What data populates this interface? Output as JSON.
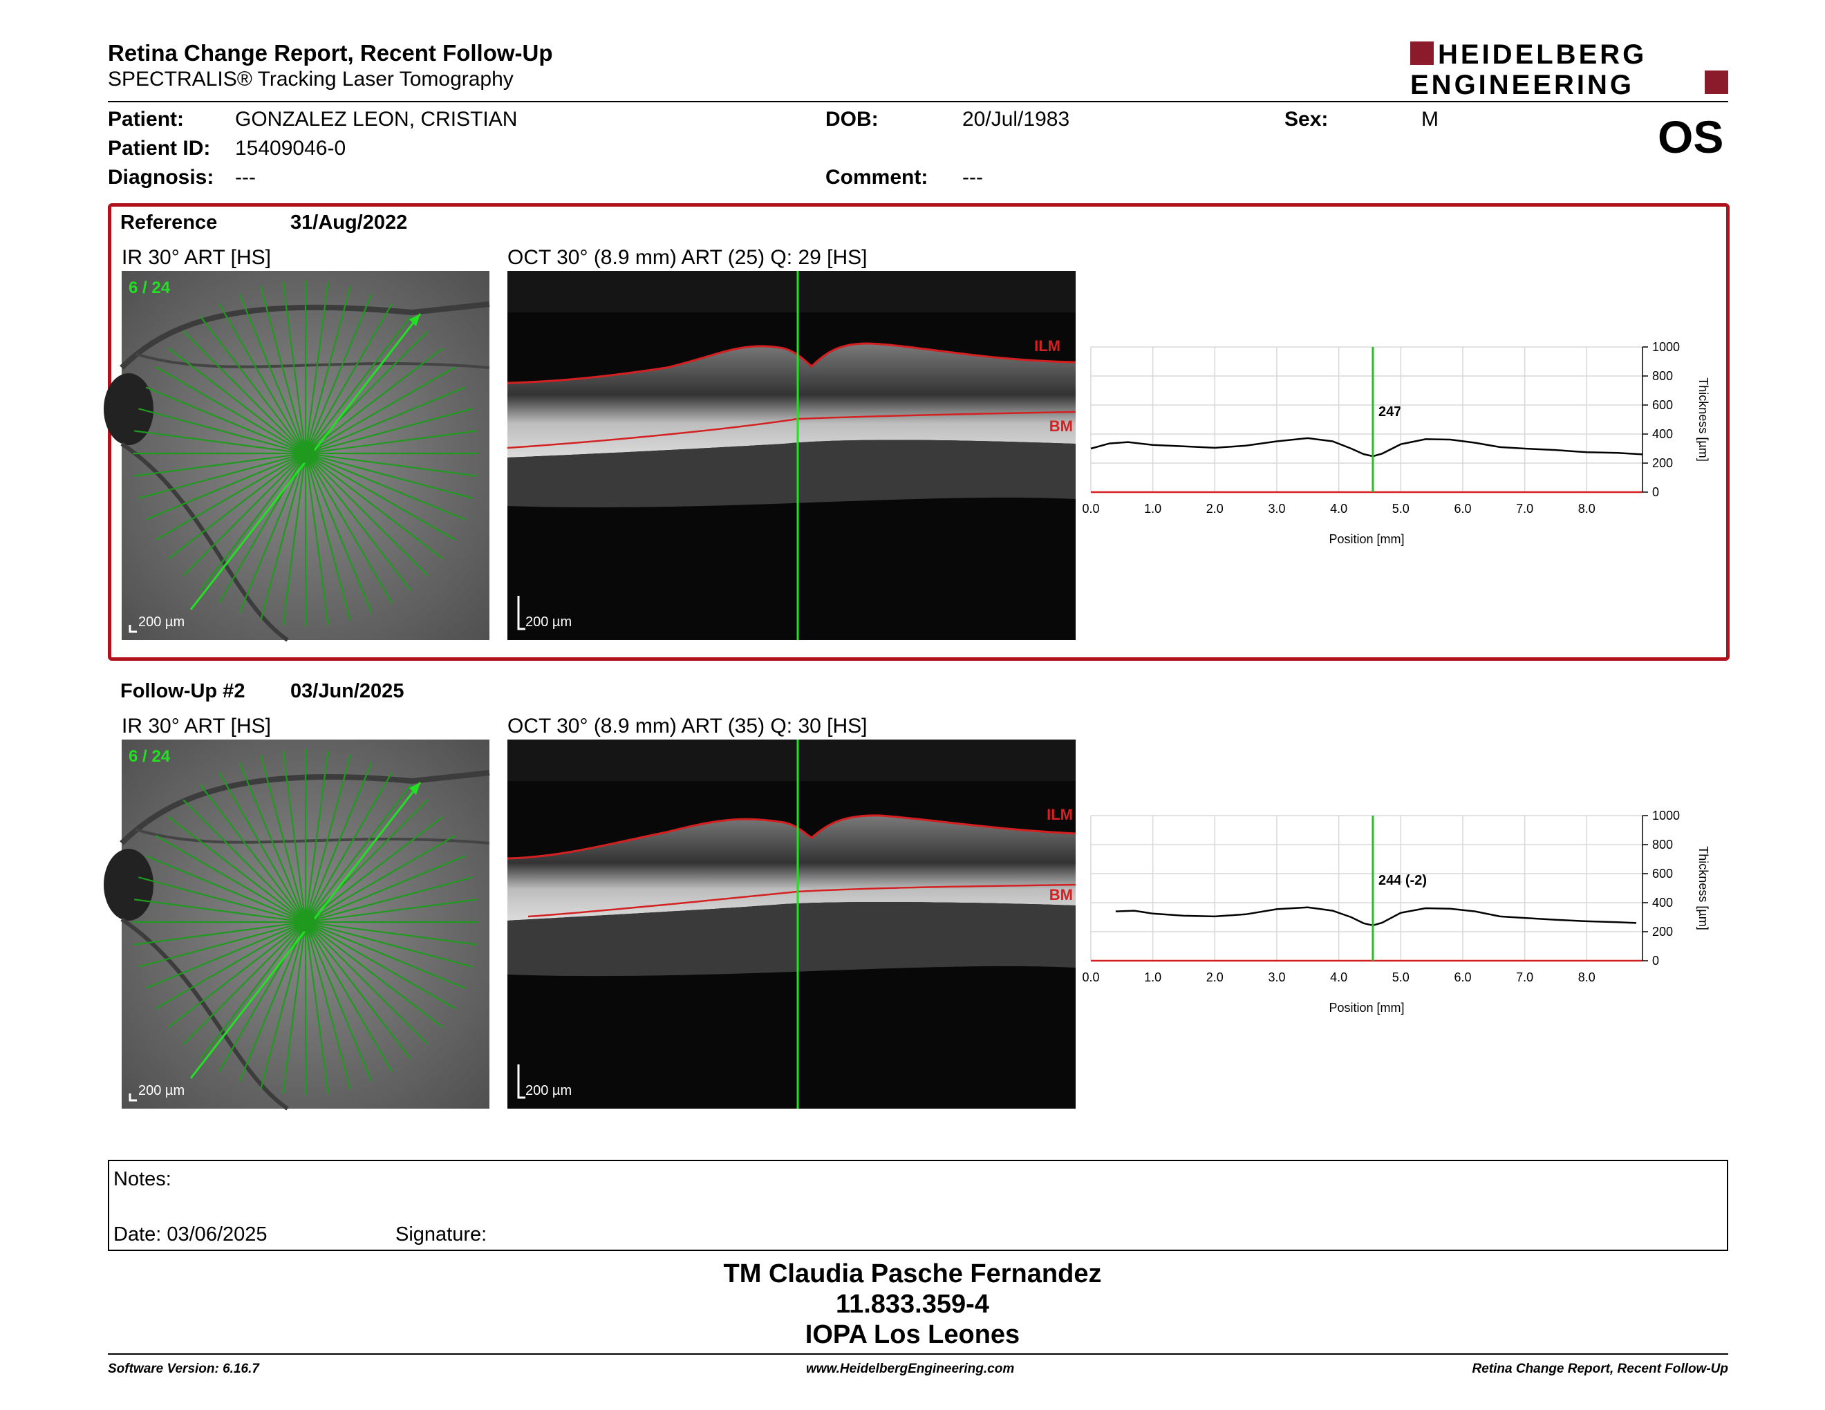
{
  "header": {
    "title": "Retina Change Report, Recent Follow-Up",
    "subtitle": "SPECTRALIS® Tracking Laser Tomography",
    "logo_line1": "HEIDELBERG",
    "logo_line2": "ENGINEERING",
    "eye": "OS"
  },
  "patient": {
    "name_label": "Patient:",
    "name": "GONZALEZ LEON, CRISTIAN",
    "id_label": "Patient ID:",
    "id": "15409046-0",
    "diagnosis_label": "Diagnosis:",
    "diagnosis": "---",
    "dob_label": "DOB:",
    "dob": "20/Jul/1983",
    "comment_label": "Comment:",
    "comment": "---",
    "sex_label": "Sex:",
    "sex": "M"
  },
  "colors": {
    "accent": "#8b1a2b",
    "ref_border": "#b0121b",
    "scan_green": "#22c322",
    "layer_red": "#d42020"
  },
  "sections": [
    {
      "label": "Reference",
      "date": "31/Aug/2022",
      "ir_title": "IR 30° ART [HS]",
      "ir_counter": "6 / 24",
      "ir_scale": "200 µm",
      "oct_title": "OCT 30° (8.9 mm) ART (25) Q: 29 [HS]",
      "oct_scale": "200 µm",
      "ilm": "ILM",
      "bm": "BM",
      "chart_value": "247"
    },
    {
      "label": "Follow-Up #2",
      "date": "03/Jun/2025",
      "ir_title": "IR 30° ART [HS]",
      "ir_counter": "6 / 24",
      "ir_scale": "200 µm",
      "oct_title": "OCT 30° (8.9 mm) ART (35) Q: 30 [HS]",
      "oct_scale": "200 µm",
      "ilm": "ILM",
      "bm": "BM",
      "chart_value": "244 (-2)"
    }
  ],
  "chart_data": [
    {
      "type": "line",
      "xlabel": "Position [mm]",
      "ylabel": "Thickness [µm]",
      "xlim": [
        0,
        8.9
      ],
      "ylim": [
        0,
        1000
      ],
      "xticks": [
        "0.0",
        "1.0",
        "2.0",
        "3.0",
        "4.0",
        "5.0",
        "6.0",
        "7.0",
        "8.0"
      ],
      "yticks": [
        "0",
        "200",
        "400",
        "600",
        "800",
        "1000"
      ],
      "cursor_x": 4.55,
      "x": [
        0.0,
        0.3,
        0.6,
        1.0,
        1.5,
        2.0,
        2.5,
        3.0,
        3.5,
        3.9,
        4.2,
        4.4,
        4.55,
        4.7,
        5.0,
        5.4,
        5.8,
        6.2,
        6.6,
        7.0,
        7.5,
        8.0,
        8.5,
        8.9
      ],
      "y": [
        300,
        335,
        345,
        325,
        315,
        305,
        320,
        350,
        372,
        350,
        300,
        262,
        247,
        265,
        330,
        365,
        362,
        340,
        310,
        300,
        290,
        275,
        270,
        260
      ]
    },
    {
      "type": "line",
      "xlabel": "Position [mm]",
      "ylabel": "Thickness [µm]",
      "xlim": [
        0,
        8.9
      ],
      "ylim": [
        0,
        1000
      ],
      "xticks": [
        "0.0",
        "1.0",
        "2.0",
        "3.0",
        "4.0",
        "5.0",
        "6.0",
        "7.0",
        "8.0"
      ],
      "yticks": [
        "0",
        "200",
        "400",
        "600",
        "800",
        "1000"
      ],
      "cursor_x": 4.55,
      "x": [
        0.4,
        0.7,
        1.0,
        1.5,
        2.0,
        2.5,
        3.0,
        3.5,
        3.9,
        4.2,
        4.4,
        4.55,
        4.7,
        5.0,
        5.4,
        5.8,
        6.2,
        6.6,
        7.0,
        7.5,
        8.0,
        8.5,
        8.8
      ],
      "y": [
        340,
        345,
        325,
        310,
        305,
        320,
        355,
        368,
        345,
        300,
        258,
        244,
        262,
        330,
        362,
        358,
        340,
        305,
        295,
        282,
        272,
        265,
        260
      ]
    }
  ],
  "notes": {
    "label": "Notes:",
    "date": "Date: 03/06/2025",
    "signature": "Signature:"
  },
  "signature_block": {
    "line1": "TM Claudia Pasche Fernandez",
    "line2": "11.833.359-4",
    "line3": "IOPA Los Leones"
  },
  "footer": {
    "left": "Software Version: 6.16.7",
    "center": "www.HeidelbergEngineering.com",
    "right": "Retina Change Report, Recent Follow-Up"
  }
}
